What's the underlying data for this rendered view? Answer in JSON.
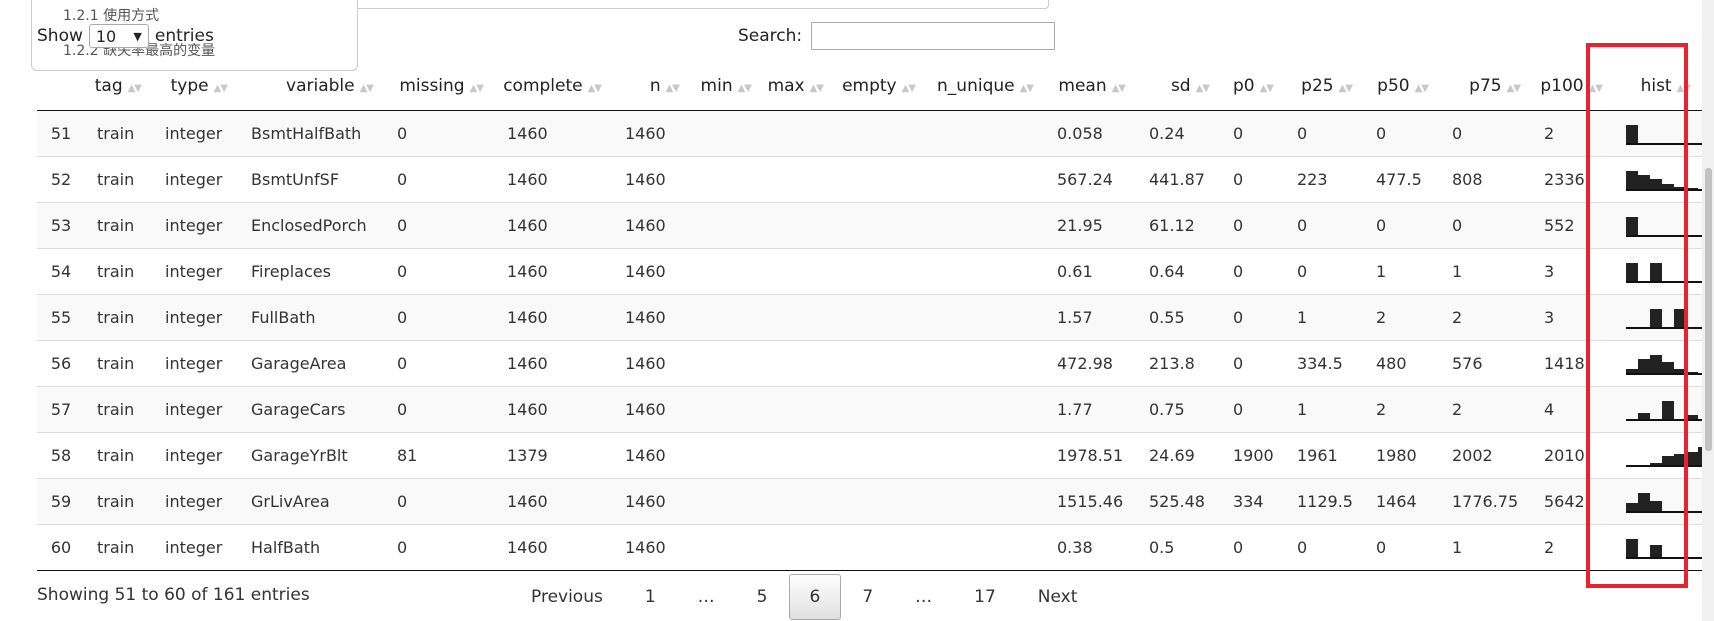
{
  "toc": {
    "items": [
      "1.2.1 使用方式",
      "1.2.2 缺失率最高的变量"
    ]
  },
  "length_menu": {
    "prefix": "Show",
    "selected": "10",
    "suffix": "entries"
  },
  "search": {
    "label": "Search:",
    "value": ""
  },
  "table": {
    "columns": [
      "",
      "tag",
      "type",
      "variable",
      "missing",
      "complete",
      "n",
      "min",
      "max",
      "empty",
      "n_unique",
      "mean",
      "sd",
      "p0",
      "p25",
      "p50",
      "p75",
      "p100",
      "hist"
    ],
    "rows": [
      {
        "idx": "51",
        "tag": "train",
        "type": "integer",
        "variable": "BsmtHalfBath",
        "missing": "0",
        "complete": "1460",
        "n": "1460",
        "min": "",
        "max": "",
        "empty": "",
        "n_unique": "",
        "mean": "0.058",
        "sd": "0.24",
        "p0": "0",
        "p25": "0",
        "p50": "0",
        "p75": "0",
        "p100": "2",
        "hist": [
          1,
          0,
          0,
          0,
          0,
          0,
          0
        ]
      },
      {
        "idx": "52",
        "tag": "train",
        "type": "integer",
        "variable": "BsmtUnfSF",
        "missing": "0",
        "complete": "1460",
        "n": "1460",
        "min": "",
        "max": "",
        "empty": "",
        "n_unique": "",
        "mean": "567.24",
        "sd": "441.87",
        "p0": "0",
        "p25": "223",
        "p50": "477.5",
        "p75": "808",
        "p100": "2336",
        "hist": [
          1,
          0.75,
          0.55,
          0.3,
          0.1,
          0.05,
          0
        ]
      },
      {
        "idx": "53",
        "tag": "train",
        "type": "integer",
        "variable": "EnclosedPorch",
        "missing": "0",
        "complete": "1460",
        "n": "1460",
        "min": "",
        "max": "",
        "empty": "",
        "n_unique": "",
        "mean": "21.95",
        "sd": "61.12",
        "p0": "0",
        "p25": "0",
        "p50": "0",
        "p75": "0",
        "p100": "552",
        "hist": [
          1,
          0,
          0,
          0,
          0,
          0,
          0
        ]
      },
      {
        "idx": "54",
        "tag": "train",
        "type": "integer",
        "variable": "Fireplaces",
        "missing": "0",
        "complete": "1460",
        "n": "1460",
        "min": "",
        "max": "",
        "empty": "",
        "n_unique": "",
        "mean": "0.61",
        "sd": "0.64",
        "p0": "0",
        "p25": "0",
        "p50": "1",
        "p75": "1",
        "p100": "3",
        "hist": [
          1,
          0,
          1,
          0,
          0,
          0,
          0
        ]
      },
      {
        "idx": "55",
        "tag": "train",
        "type": "integer",
        "variable": "FullBath",
        "missing": "0",
        "complete": "1460",
        "n": "1460",
        "min": "",
        "max": "",
        "empty": "",
        "n_unique": "",
        "mean": "1.57",
        "sd": "0.55",
        "p0": "0",
        "p25": "1",
        "p50": "2",
        "p75": "2",
        "p100": "3",
        "hist": [
          0,
          0,
          1,
          0,
          1,
          0,
          0
        ]
      },
      {
        "idx": "56",
        "tag": "train",
        "type": "integer",
        "variable": "GarageArea",
        "missing": "0",
        "complete": "1460",
        "n": "1460",
        "min": "",
        "max": "",
        "empty": "",
        "n_unique": "",
        "mean": "472.98",
        "sd": "213.8",
        "p0": "0",
        "p25": "334.5",
        "p50": "480",
        "p75": "576",
        "p100": "1418",
        "hist": [
          0.2,
          0.75,
          1,
          0.6,
          0.2,
          0.05,
          0
        ]
      },
      {
        "idx": "57",
        "tag": "train",
        "type": "integer",
        "variable": "GarageCars",
        "missing": "0",
        "complete": "1460",
        "n": "1460",
        "min": "",
        "max": "",
        "empty": "",
        "n_unique": "",
        "mean": "1.77",
        "sd": "0.75",
        "p0": "0",
        "p25": "1",
        "p50": "2",
        "p75": "2",
        "p100": "4",
        "hist": [
          0,
          0.35,
          0,
          1,
          0,
          0.2,
          0
        ]
      },
      {
        "idx": "58",
        "tag": "train",
        "type": "integer",
        "variable": "GarageYrBlt",
        "missing": "81",
        "complete": "1379",
        "n": "1460",
        "min": "",
        "max": "",
        "empty": "",
        "n_unique": "",
        "mean": "1978.51",
        "sd": "24.69",
        "p0": "1900",
        "p25": "1961",
        "p50": "1980",
        "p75": "2002",
        "p100": "2010",
        "hist": [
          0,
          0,
          0.1,
          0.5,
          0.6,
          0.7,
          1
        ]
      },
      {
        "idx": "59",
        "tag": "train",
        "type": "integer",
        "variable": "GrLivArea",
        "missing": "0",
        "complete": "1460",
        "n": "1460",
        "min": "",
        "max": "",
        "empty": "",
        "n_unique": "",
        "mean": "1515.46",
        "sd": "525.48",
        "p0": "334",
        "p25": "1129.5",
        "p50": "1464",
        "p75": "1776.75",
        "p100": "5642",
        "hist": [
          0.45,
          1,
          0.55,
          0,
          0,
          0,
          0
        ]
      },
      {
        "idx": "60",
        "tag": "train",
        "type": "integer",
        "variable": "HalfBath",
        "missing": "0",
        "complete": "1460",
        "n": "1460",
        "min": "",
        "max": "",
        "empty": "",
        "n_unique": "",
        "mean": "0.38",
        "sd": "0.5",
        "p0": "0",
        "p25": "0",
        "p50": "0",
        "p75": "1",
        "p100": "2",
        "hist": [
          1,
          0,
          0.65,
          0,
          0,
          0,
          0
        ]
      }
    ]
  },
  "info": "Showing 51 to 60 of 161 entries",
  "pagination": [
    "Previous",
    "1",
    "…",
    "5",
    "6",
    "7",
    "…",
    "17",
    "Next"
  ],
  "pagination_current": "6",
  "colors": {
    "highlight": "#e8232e",
    "row_stripe": "#f9f9f9"
  }
}
